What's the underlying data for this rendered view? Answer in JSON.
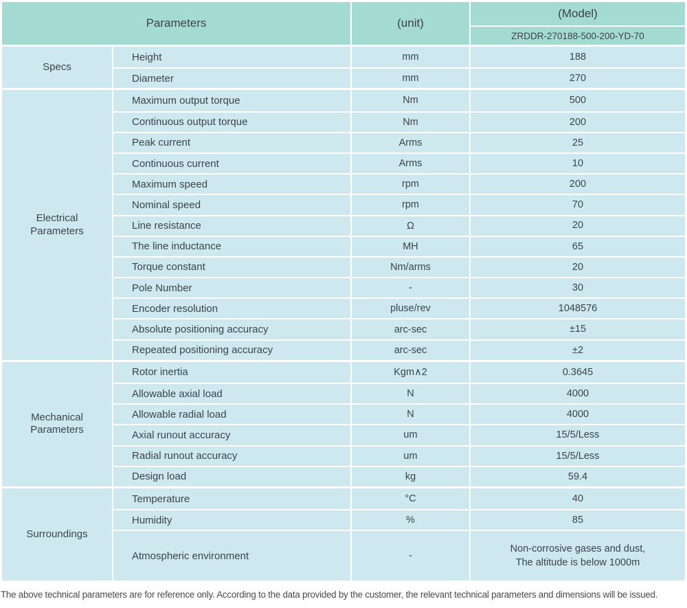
{
  "colors": {
    "header_bg": "#a3dad1",
    "body_bg": "#cde9ef",
    "divider": "#ffffff",
    "text": "#3b4449",
    "footnote_text": "#4b4b4b"
  },
  "header": {
    "parameters_label": "Parameters",
    "unit_label": "(unit)",
    "model_label": "(Model)",
    "model_value": "ZRDDR-270188-500-200-YD-70"
  },
  "sections": [
    {
      "id": "specs",
      "name": "Specs",
      "rows": [
        {
          "param": "Height",
          "unit": "mm",
          "value": "188"
        },
        {
          "param": "Diameter",
          "unit": "mm",
          "value": "270"
        }
      ]
    },
    {
      "id": "electrical-parameters",
      "name": "Electrical\nParameters",
      "rows": [
        {
          "param": "Maximum output torque",
          "unit": "Nm",
          "value": "500"
        },
        {
          "param": "Continuous output torque",
          "unit": "Nm",
          "value": "200"
        },
        {
          "param": "Peak current",
          "unit": "Arms",
          "value": "25"
        },
        {
          "param": "Continuous current",
          "unit": "Arms",
          "value": "10"
        },
        {
          "param": "Maximum speed",
          "unit": "rpm",
          "value": "200"
        },
        {
          "param": "Nominal speed",
          "unit": "rpm",
          "value": "70"
        },
        {
          "param": "Line resistance",
          "unit": "Ω",
          "value": "20"
        },
        {
          "param": "The line inductance",
          "unit": "MH",
          "value": "65"
        },
        {
          "param": "Torque constant",
          "unit": "Nm/arms",
          "value": "20"
        },
        {
          "param": "Pole Number",
          "unit": "-",
          "value": "30"
        },
        {
          "param": "Encoder resolution",
          "unit": "pluse/rev",
          "value": "1048576"
        },
        {
          "param": "Absolute positioning accuracy",
          "unit": "arc-sec",
          "value": "±15"
        },
        {
          "param": "Repeated positioning accuracy",
          "unit": "arc-sec",
          "value": "±2"
        }
      ]
    },
    {
      "id": "mechanical-parameters",
      "name": "Mechanical\nParameters",
      "rows": [
        {
          "param": "Rotor inertia",
          "unit": "Kgm∧2",
          "value": "0.3645"
        },
        {
          "param": "Allowable axial load",
          "unit": "N",
          "value": "4000"
        },
        {
          "param": "Allowable radial load",
          "unit": "N",
          "value": "4000"
        },
        {
          "param": "Axial runout accuracy",
          "unit": "um",
          "value": "15/5/Less"
        },
        {
          "param": "Radial runout accuracy",
          "unit": "um",
          "value": "15/5/Less"
        },
        {
          "param": "Design load",
          "unit": "kg",
          "value": "59.4"
        }
      ]
    },
    {
      "id": "surroundings",
      "name": "Surroundings",
      "rows": [
        {
          "param": "Temperature",
          "unit": "°C",
          "value": "40"
        },
        {
          "param": "Humidity",
          "unit": "%",
          "value": "85"
        },
        {
          "param": "Atmospheric environment",
          "unit": "-",
          "value": "Non-corrosive gases and dust,\nThe altitude is below 1000m"
        }
      ]
    }
  ],
  "footer": {
    "note": "The above technical parameters are for reference only. According to the data provided by the customer, the relevant technical parameters and dimensions will be issued."
  }
}
